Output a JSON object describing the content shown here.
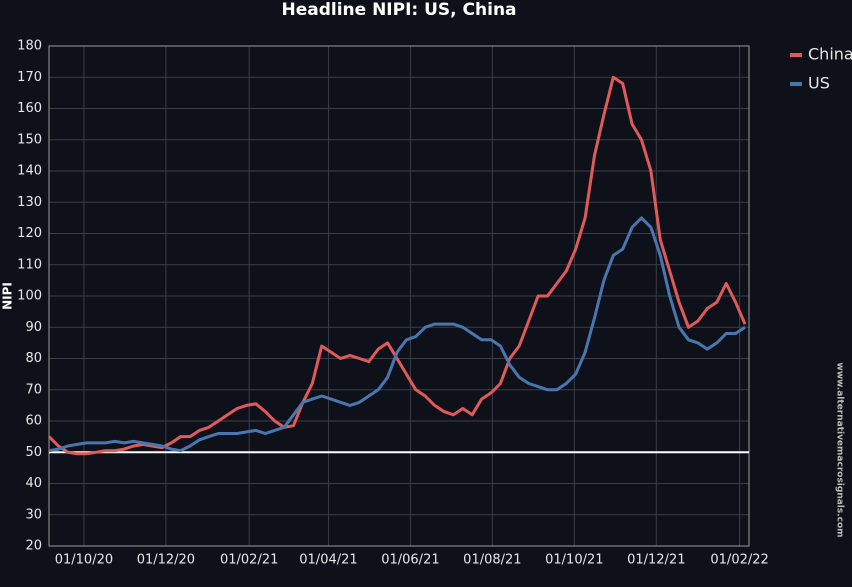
{
  "chart_data": {
    "type": "line",
    "title": "Headline NIPI: US, China",
    "y_label": "NIPI",
    "watermark": "www.alternativemacrosignals.com",
    "xlim": [
      "2020-09-05",
      "2022-02-08"
    ],
    "xticks": [
      {
        "value": "2020-10-01",
        "label": "01/10/20"
      },
      {
        "value": "2020-12-01",
        "label": "01/12/20"
      },
      {
        "value": "2021-02-01",
        "label": "01/02/21"
      },
      {
        "value": "2021-04-01",
        "label": "01/04/21"
      },
      {
        "value": "2021-06-01",
        "label": "01/06/21"
      },
      {
        "value": "2021-08-01",
        "label": "01/08/21"
      },
      {
        "value": "2021-10-01",
        "label": "01/10/21"
      },
      {
        "value": "2021-12-01",
        "label": "01/12/21"
      },
      {
        "value": "2022-02-01",
        "label": "01/02/22"
      }
    ],
    "ylim": [
      20,
      180
    ],
    "yticks": [
      20,
      30,
      40,
      50,
      60,
      70,
      80,
      90,
      100,
      110,
      120,
      130,
      140,
      150,
      160,
      170,
      180
    ],
    "grid": true,
    "hline": 50,
    "legend": "right",
    "x": [
      "2020-09-05",
      "2020-09-12",
      "2020-09-19",
      "2020-09-26",
      "2020-10-03",
      "2020-10-10",
      "2020-10-17",
      "2020-10-24",
      "2020-10-31",
      "2020-11-07",
      "2020-11-14",
      "2020-11-21",
      "2020-11-28",
      "2020-12-05",
      "2020-12-12",
      "2020-12-19",
      "2020-12-26",
      "2021-01-02",
      "2021-01-09",
      "2021-01-16",
      "2021-01-23",
      "2021-01-30",
      "2021-02-06",
      "2021-02-13",
      "2021-02-20",
      "2021-02-27",
      "2021-03-06",
      "2021-03-13",
      "2021-03-20",
      "2021-03-27",
      "2021-04-03",
      "2021-04-10",
      "2021-04-17",
      "2021-04-24",
      "2021-05-01",
      "2021-05-08",
      "2021-05-15",
      "2021-05-22",
      "2021-05-29",
      "2021-06-05",
      "2021-06-12",
      "2021-06-19",
      "2021-06-26",
      "2021-07-03",
      "2021-07-10",
      "2021-07-17",
      "2021-07-24",
      "2021-07-31",
      "2021-08-07",
      "2021-08-14",
      "2021-08-21",
      "2021-08-28",
      "2021-09-04",
      "2021-09-11",
      "2021-09-18",
      "2021-09-25",
      "2021-10-02",
      "2021-10-09",
      "2021-10-16",
      "2021-10-23",
      "2021-10-30",
      "2021-11-06",
      "2021-11-13",
      "2021-11-20",
      "2021-11-27",
      "2021-12-04",
      "2021-12-11",
      "2021-12-18",
      "2021-12-25",
      "2022-01-01",
      "2022-01-08",
      "2022-01-15",
      "2022-01-22",
      "2022-01-29",
      "2022-02-05"
    ],
    "series": [
      {
        "name": "China",
        "color": "#e05a5a",
        "values": [
          55,
          52,
          50,
          49.5,
          49.5,
          50,
          50.5,
          50.5,
          51,
          52,
          52.5,
          52,
          51.5,
          53,
          55,
          55,
          57,
          58,
          60,
          62,
          64,
          65,
          65.5,
          63,
          60,
          58,
          58.5,
          66,
          72,
          84,
          82,
          80,
          81,
          80,
          79,
          83,
          85,
          80,
          75,
          70,
          68,
          65,
          63,
          62,
          64,
          62,
          67,
          69,
          72,
          80,
          84,
          92,
          100,
          100,
          104,
          108,
          115,
          125,
          145,
          158,
          170,
          168,
          155,
          150,
          140,
          118,
          108,
          98,
          90,
          92,
          96,
          98,
          104,
          98,
          91
        ]
      },
      {
        "name": "US",
        "color": "#4a76b0",
        "values": [
          50.5,
          51,
          52,
          52.5,
          53,
          53,
          53,
          53.5,
          53,
          53.5,
          53,
          52.5,
          52,
          51,
          50.5,
          52,
          54,
          55,
          56,
          56,
          56,
          56.5,
          57,
          56,
          57,
          58,
          62,
          66,
          67,
          68,
          67,
          66,
          65,
          66,
          68,
          70,
          74,
          82,
          86,
          87,
          90,
          91,
          91,
          91,
          90,
          88,
          86,
          86,
          84,
          78,
          74,
          72,
          71,
          70,
          70,
          72,
          75,
          82,
          93,
          105,
          113,
          115,
          122,
          125,
          122,
          113,
          100,
          90,
          86,
          85,
          83,
          85,
          88,
          88,
          90
        ]
      }
    ]
  }
}
